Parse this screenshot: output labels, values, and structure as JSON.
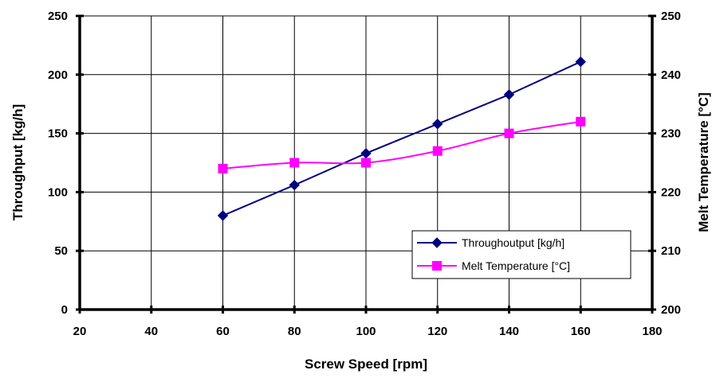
{
  "chart_data": {
    "type": "line",
    "xlabel": "Screw Speed [rpm]",
    "ylabel": "Throughput [kg/h]",
    "y2label": "Melt Temperature [°C]",
    "xlim": [
      20,
      180
    ],
    "ylim": [
      0,
      250
    ],
    "y2lim": [
      200,
      250
    ],
    "x_ticks": [
      20,
      40,
      60,
      80,
      100,
      120,
      140,
      160,
      180
    ],
    "y_ticks": [
      0,
      50,
      100,
      150,
      200,
      250
    ],
    "y2_ticks": [
      200,
      210,
      220,
      230,
      240,
      250
    ],
    "grid": true,
    "legend_position": "bottom-right",
    "series": [
      {
        "name": "Throughoutput [kg/h]",
        "axis": "left",
        "color": "#000080",
        "marker": "diamond",
        "x": [
          60,
          80,
          100,
          120,
          140,
          160
        ],
        "y": [
          80,
          106,
          133,
          158,
          183,
          211
        ]
      },
      {
        "name": "Melt Temperature [°C]",
        "axis": "right",
        "color": "#ff00ff",
        "marker": "square",
        "x": [
          60,
          80,
          100,
          120,
          140,
          160
        ],
        "y": [
          224,
          225,
          225,
          227,
          230,
          232
        ]
      }
    ]
  }
}
